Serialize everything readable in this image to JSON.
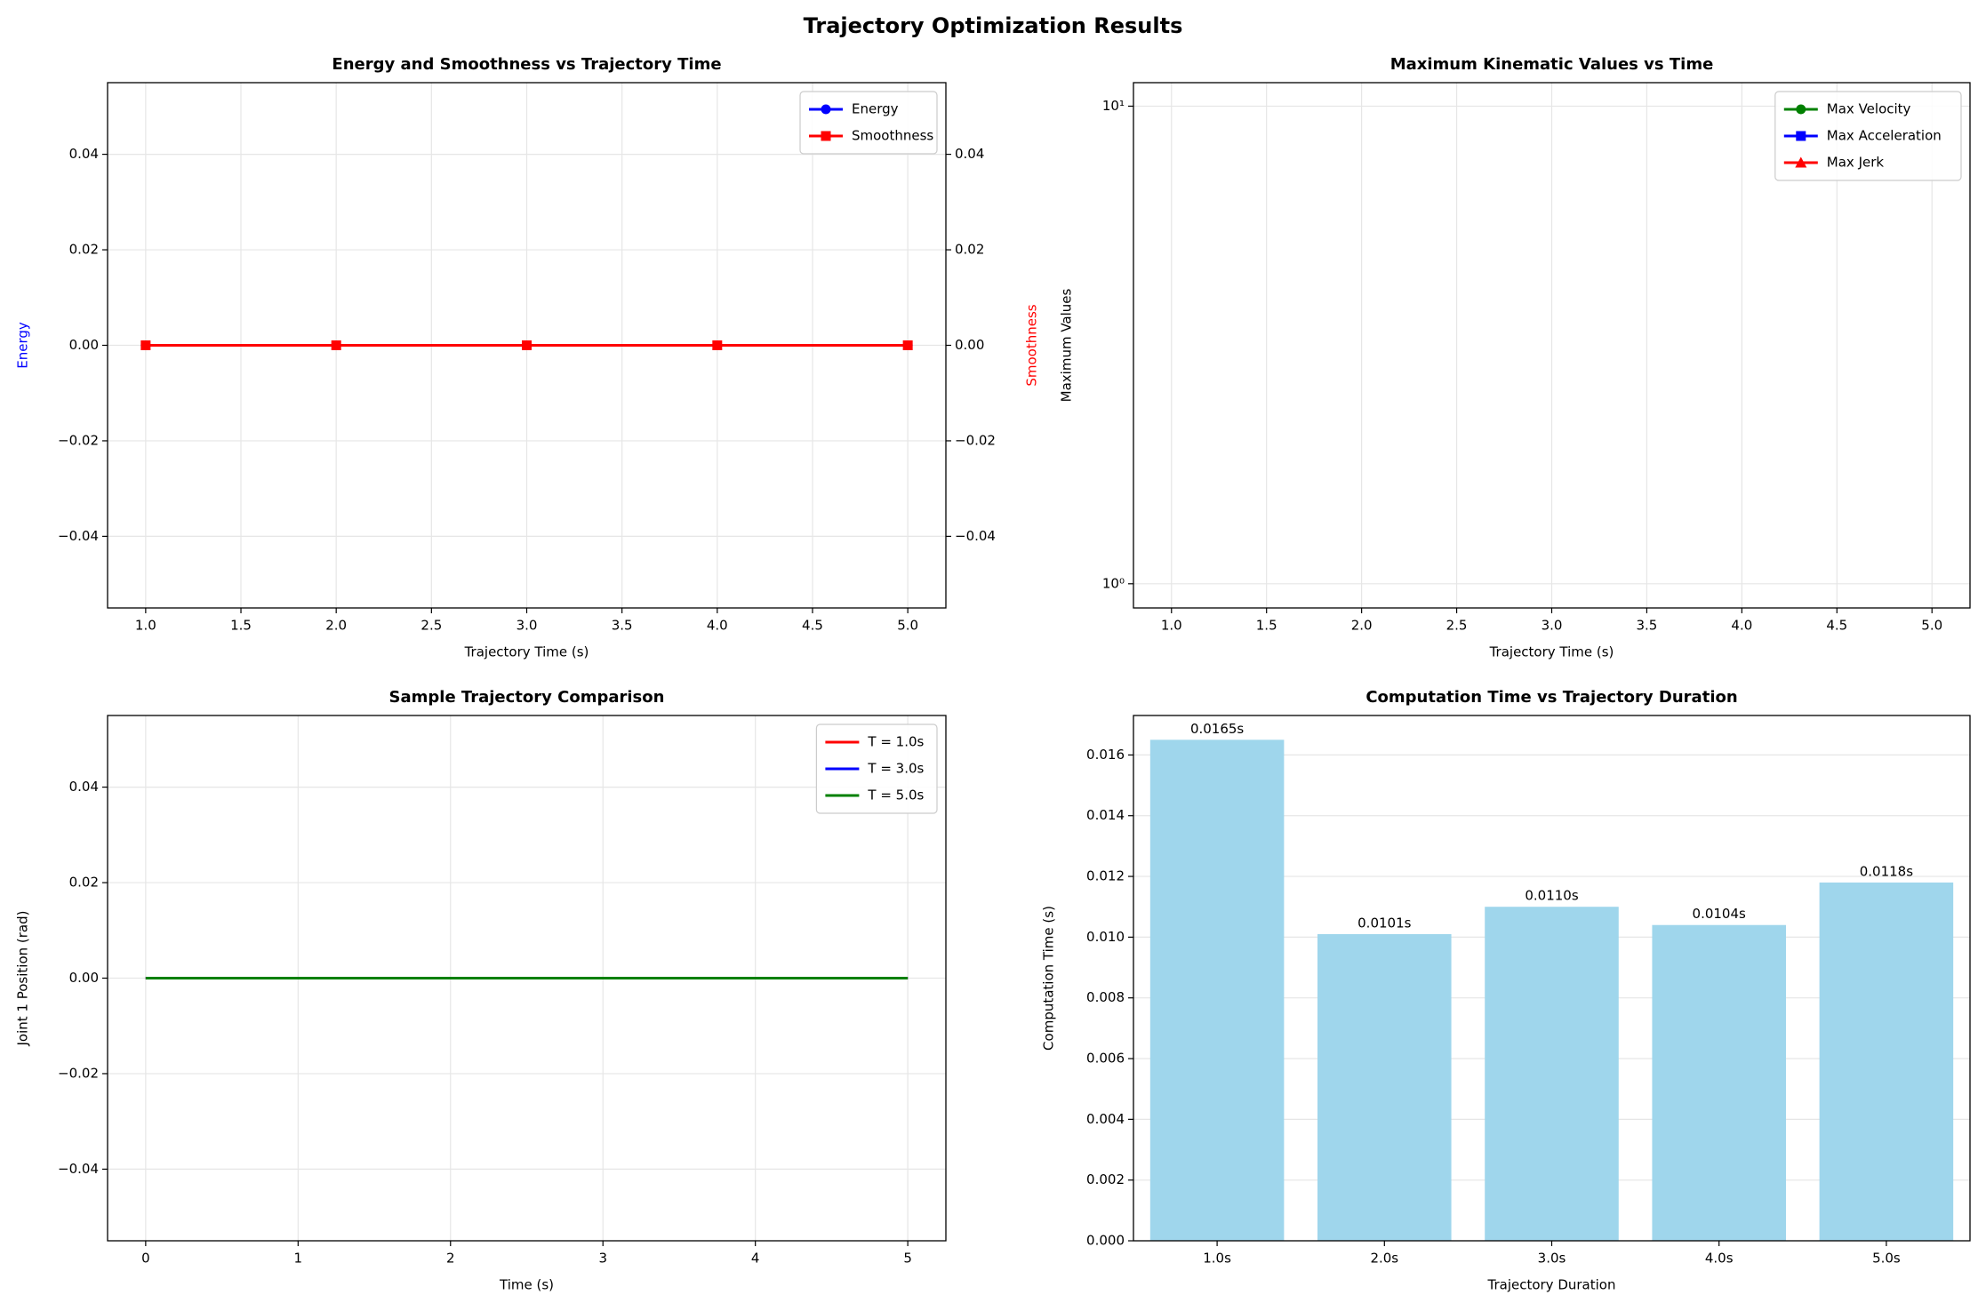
{
  "title": "Trajectory Optimization Results",
  "chart_data": [
    {
      "type": "line",
      "title": "Energy and Smoothness vs Trajectory Time",
      "xlabel": "Trajectory Time (s)",
      "ylabel": "Energy",
      "ylabel_color": "blue",
      "y2label": "Smoothness",
      "y2label_color": "red",
      "x": [
        1,
        2,
        3,
        4,
        5
      ],
      "series": [
        {
          "name": "Energy",
          "color": "blue",
          "marker": "circle",
          "values": [
            0,
            0,
            0,
            0,
            0
          ]
        },
        {
          "name": "Smoothness",
          "color": "red",
          "marker": "square",
          "axis": "y2",
          "values": [
            0,
            0,
            0,
            0,
            0
          ]
        }
      ],
      "xlim": [
        0.8,
        5.2
      ],
      "xticks": [
        {
          "value": 1,
          "label": "1.0"
        },
        {
          "value": 1.5,
          "label": "1.5"
        },
        {
          "value": 2,
          "label": "2.0"
        },
        {
          "value": 2.5,
          "label": "2.5"
        },
        {
          "value": 3,
          "label": "3.0"
        },
        {
          "value": 3.5,
          "label": "3.5"
        },
        {
          "value": 4,
          "label": "4.0"
        },
        {
          "value": 4.5,
          "label": "4.5"
        },
        {
          "value": 5,
          "label": "5.0"
        }
      ],
      "ylim": [
        -0.055,
        0.055
      ],
      "yticks": [
        {
          "value": -0.04,
          "label": "−0.04"
        },
        {
          "value": -0.02,
          "label": "−0.02"
        },
        {
          "value": 0,
          "label": "0.00"
        },
        {
          "value": 0.02,
          "label": "0.02"
        },
        {
          "value": 0.04,
          "label": "0.04"
        }
      ],
      "y2lim": [
        -0.055,
        0.055
      ],
      "y2ticks": [
        {
          "value": -0.04,
          "label": "−0.04"
        },
        {
          "value": -0.02,
          "label": "−0.02"
        },
        {
          "value": 0,
          "label": "0.00"
        },
        {
          "value": 0.02,
          "label": "0.02"
        },
        {
          "value": 0.04,
          "label": "0.04"
        }
      ],
      "grid": true,
      "legend": "upper right"
    },
    {
      "type": "line",
      "title": "Maximum Kinematic Values vs Time",
      "xlabel": "Trajectory Time (s)",
      "ylabel": "Maximum Values",
      "yscale": "log",
      "x": [
        1,
        2,
        3,
        4,
        5
      ],
      "series": [
        {
          "name": "Max Velocity",
          "color": "green",
          "marker": "circle",
          "values": [
            null,
            null,
            null,
            null,
            null
          ]
        },
        {
          "name": "Max Acceleration",
          "color": "blue",
          "marker": "square",
          "values": [
            null,
            null,
            null,
            null,
            null
          ]
        },
        {
          "name": "Max Jerk",
          "color": "red",
          "marker": "triangle",
          "values": [
            null,
            null,
            null,
            null,
            null
          ]
        }
      ],
      "xlim": [
        0.8,
        5.2
      ],
      "xticks": [
        {
          "value": 1,
          "label": "1.0"
        },
        {
          "value": 1.5,
          "label": "1.5"
        },
        {
          "value": 2,
          "label": "2.0"
        },
        {
          "value": 2.5,
          "label": "2.5"
        },
        {
          "value": 3,
          "label": "3.0"
        },
        {
          "value": 3.5,
          "label": "3.5"
        },
        {
          "value": 4,
          "label": "4.0"
        },
        {
          "value": 4.5,
          "label": "4.5"
        },
        {
          "value": 5,
          "label": "5.0"
        }
      ],
      "ylim": [
        0.89,
        11.2
      ],
      "yticks": [
        {
          "value": 1,
          "label": "10⁰"
        },
        {
          "value": 10,
          "label": "10¹"
        }
      ],
      "grid": true,
      "legend": "upper right"
    },
    {
      "type": "line",
      "title": "Sample Trajectory Comparison",
      "xlabel": "Time (s)",
      "ylabel": "Joint 1 Position (rad)",
      "x": [
        0,
        1,
        2,
        3,
        4,
        5
      ],
      "series": [
        {
          "name": "T = 1.0s",
          "color": "red",
          "values": [
            0,
            0,
            0,
            0,
            0,
            0
          ]
        },
        {
          "name": "T = 3.0s",
          "color": "blue",
          "values": [
            0,
            0,
            0,
            0,
            0,
            0
          ]
        },
        {
          "name": "T = 5.0s",
          "color": "green",
          "values": [
            0,
            0,
            0,
            0,
            0,
            0
          ]
        }
      ],
      "xlim": [
        -0.25,
        5.25
      ],
      "xticks": [
        0,
        1,
        2,
        3,
        4,
        5
      ],
      "ylim": [
        -0.055,
        0.055
      ],
      "yticks": [
        {
          "value": -0.04,
          "label": "−0.04"
        },
        {
          "value": -0.02,
          "label": "−0.02"
        },
        {
          "value": 0,
          "label": "0.00"
        },
        {
          "value": 0.02,
          "label": "0.02"
        },
        {
          "value": 0.04,
          "label": "0.04"
        }
      ],
      "grid": true,
      "legend": "upper right"
    },
    {
      "type": "bar",
      "title": "Computation Time vs Trajectory Duration",
      "xlabel": "Trajectory Duration",
      "ylabel": "Computation Time (s)",
      "categories": [
        "1.0s",
        "2.0s",
        "3.0s",
        "4.0s",
        "5.0s"
      ],
      "values": [
        0.0165,
        0.0101,
        0.011,
        0.0104,
        0.0118
      ],
      "value_labels": [
        "0.0165s",
        "0.0101s",
        "0.0110s",
        "0.0104s",
        "0.0118s"
      ],
      "color": "#9fd6ec",
      "ylim": [
        0,
        0.0173
      ],
      "yticks": [
        {
          "value": 0,
          "label": "0.000"
        },
        {
          "value": 0.002,
          "label": "0.002"
        },
        {
          "value": 0.004,
          "label": "0.004"
        },
        {
          "value": 0.006,
          "label": "0.006"
        },
        {
          "value": 0.008,
          "label": "0.008"
        },
        {
          "value": 0.01,
          "label": "0.010"
        },
        {
          "value": 0.012,
          "label": "0.012"
        },
        {
          "value": 0.014,
          "label": "0.014"
        },
        {
          "value": 0.016,
          "label": "0.016"
        }
      ],
      "grid": true
    }
  ]
}
